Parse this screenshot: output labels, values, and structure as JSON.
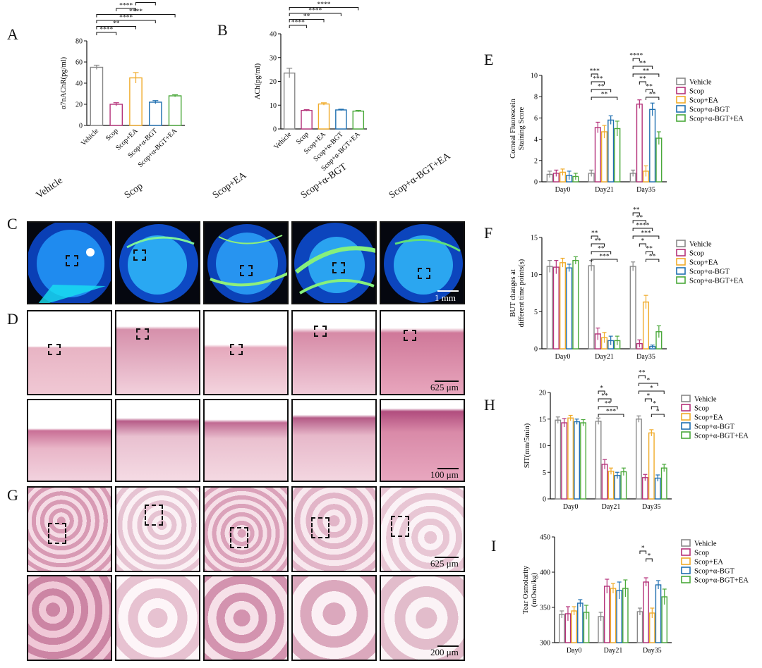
{
  "panel_letters": {
    "A": "A",
    "B": "B",
    "C": "C",
    "D": "D",
    "E": "E",
    "F": "F",
    "G": "G",
    "H": "H",
    "I": "I"
  },
  "image_column_labels": [
    "Vehicle",
    "Scop",
    "Scop+EA",
    "Scop+α-BGT",
    "Scop+α-BGT+EA"
  ],
  "scale_bars": {
    "C": "1 mm",
    "D_top": "625 μm",
    "D_bottom": "100 μm",
    "G_top": "625 μm",
    "G_bottom": "200 μm"
  },
  "colors": {
    "Vehicle": "#888888",
    "Scop": "#b5327a",
    "Scop+EA": "#f0ab2a",
    "Scop+α-BGT": "#1f6fb0",
    "Scop+α-BGT+EA": "#4aa83a"
  },
  "chart_data": [
    {
      "id": "A",
      "type": "bar",
      "categories": [
        "Vehicle",
        "Scop",
        "Scop+EA",
        "Scop+α-BGT",
        "Scop+α-BGT+EA"
      ],
      "values": [
        55,
        20,
        45,
        22,
        28
      ],
      "errors": [
        2,
        1.5,
        5,
        1.5,
        1
      ],
      "ylabel": "α7nAChR(pg/ml)",
      "ylim": [
        0,
        80
      ],
      "yticks": [
        0,
        20,
        40,
        60,
        80
      ],
      "significance": [
        {
          "from": 0,
          "to": 1,
          "label": "****"
        },
        {
          "from": 0,
          "to": 2,
          "label": "**"
        },
        {
          "from": 0,
          "to": 3,
          "label": "****"
        },
        {
          "from": 0,
          "to": 4,
          "label": "****"
        },
        {
          "from": 1,
          "to": 2,
          "label": "****"
        },
        {
          "from": 2,
          "to": 3,
          "label": "****"
        },
        {
          "from": 2,
          "to": 4,
          "label": "****"
        }
      ]
    },
    {
      "id": "B",
      "type": "bar",
      "categories": [
        "Vehicle",
        "Scop",
        "Scop+EA",
        "Scop+α-BGT",
        "Scop+α-BGT+EA"
      ],
      "values": [
        23.5,
        7.8,
        10.5,
        8,
        7.5
      ],
      "errors": [
        2,
        0.3,
        0.5,
        0.3,
        0.3
      ],
      "ylabel": "ACh(pg/ml)",
      "ylim": [
        0,
        40
      ],
      "yticks": [
        0,
        10,
        20,
        30,
        40
      ],
      "significance": [
        {
          "from": 0,
          "to": 1,
          "label": "****"
        },
        {
          "from": 0,
          "to": 2,
          "label": "**"
        },
        {
          "from": 0,
          "to": 3,
          "label": "****"
        },
        {
          "from": 0,
          "to": 4,
          "label": "****"
        }
      ]
    },
    {
      "id": "E",
      "type": "bar",
      "categories": [
        "Day0",
        "Day21",
        "Day35"
      ],
      "series": [
        {
          "name": "Vehicle",
          "values": [
            0.7,
            0.8,
            0.8
          ],
          "errors": [
            0.3,
            0.3,
            0.3
          ]
        },
        {
          "name": "Scop",
          "values": [
            0.8,
            5.1,
            7.3
          ],
          "errors": [
            0.3,
            0.5,
            0.4
          ]
        },
        {
          "name": "Scop+EA",
          "values": [
            0.9,
            4.7,
            1.0
          ],
          "errors": [
            0.3,
            0.6,
            0.5
          ]
        },
        {
          "name": "Scop+α-BGT",
          "values": [
            0.6,
            5.8,
            6.8
          ],
          "errors": [
            0.4,
            0.4,
            0.6
          ]
        },
        {
          "name": "Scop+α-BGT+EA",
          "values": [
            0.5,
            5.0,
            4.1
          ],
          "errors": [
            0.3,
            0.7,
            0.6
          ]
        }
      ],
      "ylabel": "Corneal Fluorescein Staining Score",
      "ylim": [
        0,
        10
      ],
      "yticks": [
        0,
        2,
        4,
        6,
        8,
        10
      ],
      "significance": [
        {
          "group": 1,
          "from": 0,
          "to": 1,
          "label": "***"
        },
        {
          "group": 1,
          "from": 0,
          "to": 2,
          "label": "***"
        },
        {
          "group": 1,
          "from": 0,
          "to": 3,
          "label": "**"
        },
        {
          "group": 1,
          "from": 0,
          "to": 4,
          "label": "**"
        },
        {
          "group": 2,
          "from": 0,
          "to": 1,
          "label": "****"
        },
        {
          "group": 2,
          "from": 0,
          "to": 3,
          "label": "**"
        },
        {
          "group": 2,
          "from": 0,
          "to": 4,
          "label": "**"
        },
        {
          "group": 2,
          "from": 1,
          "to": 2,
          "label": "**"
        },
        {
          "group": 2,
          "from": 2,
          "to": 3,
          "label": "**"
        },
        {
          "group": 2,
          "from": 2,
          "to": 4,
          "label": "**"
        }
      ]
    },
    {
      "id": "F",
      "type": "bar",
      "categories": [
        "Day0",
        "Day21",
        "Day35"
      ],
      "series": [
        {
          "name": "Vehicle",
          "values": [
            11.1,
            11.2,
            11.1
          ],
          "errors": [
            0.8,
            0.7,
            0.6
          ]
        },
        {
          "name": "Scop",
          "values": [
            11.0,
            2.0,
            0.7
          ],
          "errors": [
            0.9,
            0.8,
            0.5
          ]
        },
        {
          "name": "Scop+EA",
          "values": [
            11.6,
            1.5,
            6.3
          ],
          "errors": [
            0.6,
            0.7,
            0.9
          ]
        },
        {
          "name": "Scop+α-BGT",
          "values": [
            10.9,
            1.1,
            0.3
          ],
          "errors": [
            0.5,
            0.6,
            0.2
          ]
        },
        {
          "name": "Scop+α-BGT+EA",
          "values": [
            11.9,
            1.1,
            2.3
          ],
          "errors": [
            0.5,
            0.6,
            0.8
          ]
        }
      ],
      "ylabel": "BUT changes at different time points(s)",
      "ylim": [
        0,
        15
      ],
      "yticks": [
        0,
        5,
        10,
        15
      ],
      "significance": [
        {
          "group": 1,
          "from": 0,
          "to": 1,
          "label": "**"
        },
        {
          "group": 1,
          "from": 0,
          "to": 2,
          "label": "**"
        },
        {
          "group": 1,
          "from": 0,
          "to": 3,
          "label": "**"
        },
        {
          "group": 1,
          "from": 0,
          "to": 4,
          "label": "***"
        },
        {
          "group": 2,
          "from": 0,
          "to": 1,
          "label": "**"
        },
        {
          "group": 2,
          "from": 0,
          "to": 2,
          "label": "**"
        },
        {
          "group": 2,
          "from": 0,
          "to": 3,
          "label": "****"
        },
        {
          "group": 2,
          "from": 0,
          "to": 4,
          "label": "***"
        },
        {
          "group": 2,
          "from": 1,
          "to": 2,
          "label": "*"
        },
        {
          "group": 2,
          "from": 2,
          "to": 3,
          "label": "**"
        },
        {
          "group": 2,
          "from": 2,
          "to": 4,
          "label": "**"
        }
      ]
    },
    {
      "id": "H",
      "type": "bar",
      "categories": [
        "Day0",
        "Day21",
        "Day35"
      ],
      "series": [
        {
          "name": "Vehicle",
          "values": [
            14.8,
            14.6,
            15.0
          ],
          "errors": [
            0.6,
            0.6,
            0.6
          ]
        },
        {
          "name": "Scop",
          "values": [
            14.3,
            6.5,
            4.0
          ],
          "errors": [
            0.8,
            0.9,
            0.6
          ]
        },
        {
          "name": "Scop+EA",
          "values": [
            15.2,
            5.2,
            12.4
          ],
          "errors": [
            0.5,
            0.6,
            0.6
          ]
        },
        {
          "name": "Scop+α-BGT",
          "values": [
            14.5,
            4.4,
            3.9
          ],
          "errors": [
            0.5,
            0.6,
            0.6
          ]
        },
        {
          "name": "Scop+α-BGT+EA",
          "values": [
            14.3,
            5.1,
            5.8
          ],
          "errors": [
            0.6,
            0.7,
            0.7
          ]
        }
      ],
      "ylabel": "SIT(mm/5min)",
      "ylim": [
        0,
        20
      ],
      "yticks": [
        0,
        5,
        10,
        15,
        20
      ],
      "significance": [
        {
          "group": 1,
          "from": 0,
          "to": 1,
          "label": "*"
        },
        {
          "group": 1,
          "from": 0,
          "to": 2,
          "label": "**"
        },
        {
          "group": 1,
          "from": 0,
          "to": 3,
          "label": "**"
        },
        {
          "group": 1,
          "from": 0,
          "to": 4,
          "label": "***"
        },
        {
          "group": 2,
          "from": 0,
          "to": 1,
          "label": "**"
        },
        {
          "group": 2,
          "from": 0,
          "to": 3,
          "label": "*"
        },
        {
          "group": 2,
          "from": 0,
          "to": 4,
          "label": "*"
        },
        {
          "group": 2,
          "from": 1,
          "to": 2,
          "label": "*"
        },
        {
          "group": 2,
          "from": 2,
          "to": 3,
          "label": "*"
        },
        {
          "group": 2,
          "from": 2,
          "to": 4,
          "label": "*"
        }
      ]
    },
    {
      "id": "I",
      "type": "bar",
      "categories": [
        "Day0",
        "Day21",
        "Day35"
      ],
      "series": [
        {
          "name": "Vehicle",
          "values": [
            340,
            337,
            344
          ],
          "errors": [
            5,
            6,
            5
          ]
        },
        {
          "name": "Scop",
          "values": [
            341,
            380,
            386
          ],
          "errors": [
            10,
            10,
            6
          ]
        },
        {
          "name": "Scop+EA",
          "values": [
            345,
            377,
            342
          ],
          "errors": [
            6,
            7,
            7
          ]
        },
        {
          "name": "Scop+α-BGT",
          "values": [
            356,
            374,
            382
          ],
          "errors": [
            5,
            12,
            6
          ]
        },
        {
          "name": "Scop+α-BGT+EA",
          "values": [
            343,
            377,
            365
          ],
          "errors": [
            10,
            12,
            11
          ]
        }
      ],
      "ylabel": "Tear Osmolarity (mOsm/kg)",
      "ylim": [
        300,
        450
      ],
      "yticks": [
        300,
        350,
        400,
        450
      ],
      "significance": [
        {
          "group": 2,
          "from": 0,
          "to": 1,
          "label": "*"
        },
        {
          "group": 2,
          "from": 1,
          "to": 2,
          "label": "*"
        }
      ]
    }
  ]
}
